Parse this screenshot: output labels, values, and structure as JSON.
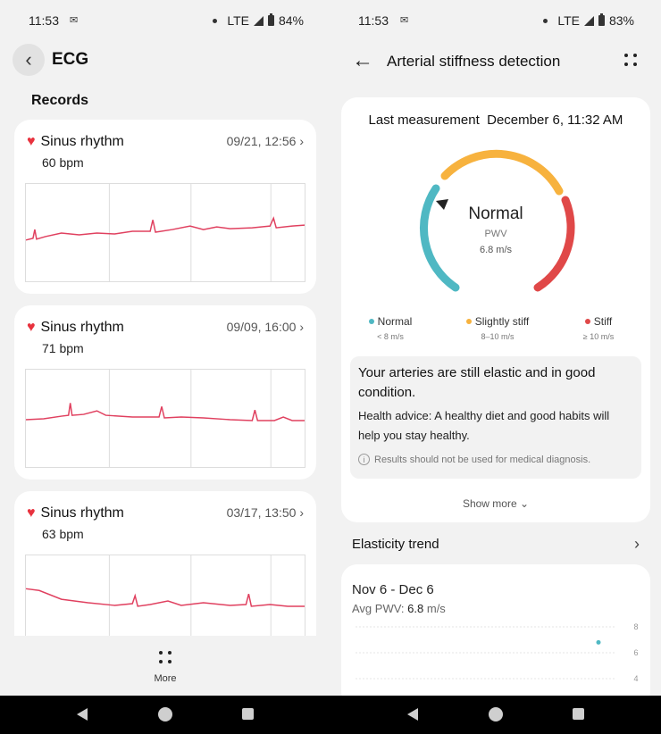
{
  "left": {
    "status": {
      "time": "11:53",
      "network": "LTE",
      "battery": "84%"
    },
    "header": {
      "title": "ECG"
    },
    "section_title": "Records",
    "records": [
      {
        "rhythm": "Sinus rhythm",
        "datetime": "09/21, 12:56",
        "bpm": "60 bpm"
      },
      {
        "rhythm": "Sinus rhythm",
        "datetime": "09/09, 16:00",
        "bpm": "71 bpm"
      },
      {
        "rhythm": "Sinus rhythm",
        "datetime": "03/17, 13:50",
        "bpm": "63 bpm"
      }
    ],
    "bottom": {
      "more_label": "More"
    }
  },
  "right": {
    "status": {
      "time": "11:53",
      "network": "LTE",
      "battery": "83%"
    },
    "header": {
      "title": "Arterial stiffness detection"
    },
    "measurement": {
      "label": "Last measurement",
      "datetime": "December 6, 11:32 AM",
      "status": "Normal",
      "metric": "PWV",
      "value": "6.8 m/s",
      "pwv": 6.8
    },
    "legend": [
      {
        "label": "Normal",
        "range": "< 8 m/s",
        "color": "#4fb8c3"
      },
      {
        "label": "Slightly stiff",
        "range": "8–10 m/s",
        "color": "#f7b23e"
      },
      {
        "label": "Stiff",
        "range": "≥ 10 m/s",
        "color": "#e04848"
      }
    ],
    "advice": {
      "title": "Your arteries are still elastic and in good condition.",
      "text": "Health advice: A healthy diet and good habits will help you stay healthy.",
      "disclaimer": "Results should not be used for medical diagnosis."
    },
    "show_more": "Show more",
    "trend": {
      "section_label": "Elasticity trend",
      "range": "Nov 6 - Dec 6",
      "avg_label": "Avg PWV:",
      "avg_value": "6.8",
      "avg_unit": "m/s"
    }
  },
  "chart_data": {
    "type": "scatter",
    "title": "",
    "xlabel": "",
    "ylabel": "",
    "y_ticks": [
      "8",
      "6",
      "4"
    ],
    "ylim": [
      4,
      8
    ],
    "x": [
      "Dec 6"
    ],
    "series": [
      {
        "values": [
          6.8
        ]
      }
    ],
    "grid": true
  },
  "colors": {
    "ecg_line": "#e0405f",
    "point": "#4fb8c3"
  },
  "icons": {
    "back": "chevron-left-icon",
    "arrow_back": "arrow-left-icon",
    "more": "four-dots-icon",
    "heart": "heart-icon",
    "chevron": "chevron-right-icon",
    "info": "info-icon"
  }
}
